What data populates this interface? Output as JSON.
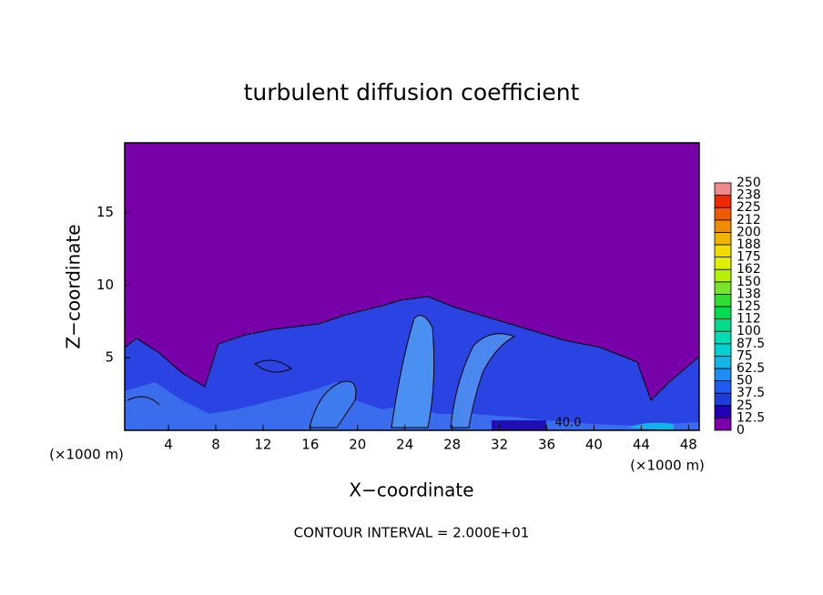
{
  "chart_data": {
    "type": "contour",
    "title": "turbulent diffusion coefficient",
    "xlabel": "X−coordinate",
    "ylabel": "Z−coordinate",
    "y_unit_label": "(×1000 m)",
    "x_unit_label": "(×1000 m)",
    "footer": "CONTOUR INTERVAL = 2.000E+01",
    "annotations": [
      "40.0"
    ],
    "xlim": [
      0.3,
      48.9
    ],
    "xticks": [
      4,
      8,
      12,
      16,
      20,
      24,
      28,
      32,
      36,
      40,
      44,
      48
    ],
    "ylim": [
      0,
      19.8
    ],
    "yticks": [
      5,
      10,
      15
    ],
    "colorbar": {
      "levels": [
        0,
        12.5,
        25,
        37.5,
        50,
        62.5,
        75,
        87.5,
        100,
        {
          "value": 112.5,
          "label": "112"
        },
        125,
        {
          "value": 137.5,
          "label": "138"
        },
        150,
        {
          "value": 162.5,
          "label": "162"
        },
        175,
        {
          "value": 187.5,
          "label": "188"
        },
        200,
        {
          "value": 212.5,
          "label": "212"
        },
        225,
        {
          "value": 237.5,
          "label": "238"
        },
        250
      ],
      "colors": [
        "#7a00aa",
        "#2200b4",
        "#1e3cdc",
        "#1e5af0",
        "#1e8cf0",
        "#14b4e6",
        "#00d2d2",
        "#00dcb4",
        "#00dc8c",
        "#00dc50",
        "#32dc32",
        "#78e628",
        "#b4f000",
        "#dcf000",
        "#f0dc00",
        "#f0b400",
        "#f08c00",
        "#f05a00",
        "#f02800",
        "#f08a8a"
      ]
    }
  }
}
